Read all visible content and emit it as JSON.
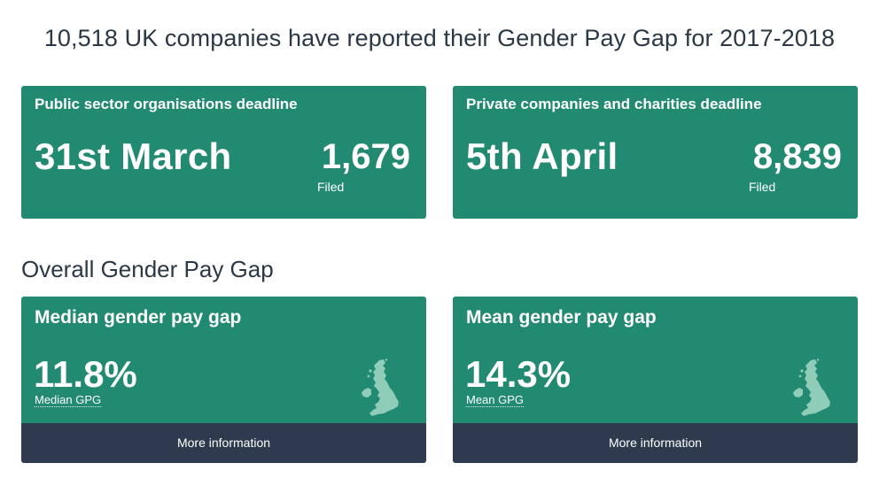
{
  "header": {
    "title": "10,518 UK companies have reported their Gender Pay Gap for 2017-2018"
  },
  "deadlines": [
    {
      "title": "Public sector organisations deadline",
      "date": "31st March",
      "count": "1,679",
      "count_label": "Filed"
    },
    {
      "title": "Private companies and charities deadline",
      "date": "5th April",
      "count": "8,839",
      "count_label": "Filed"
    }
  ],
  "overall": {
    "heading": "Overall Gender Pay Gap",
    "cards": [
      {
        "title": "Median gender pay gap",
        "value": "11.8%",
        "abbr": "Median GPG",
        "icon": "uk-map-icon",
        "link_label": "More information"
      },
      {
        "title": "Mean gender pay gap",
        "value": "14.3%",
        "abbr": "Mean GPG",
        "icon": "uk-map-icon",
        "link_label": "More information"
      }
    ]
  },
  "colors": {
    "card_green": "#218a71",
    "footer_navy": "#2e3b4e",
    "map_tint": "#8fcdb9",
    "text_dark": "#2b3846"
  }
}
